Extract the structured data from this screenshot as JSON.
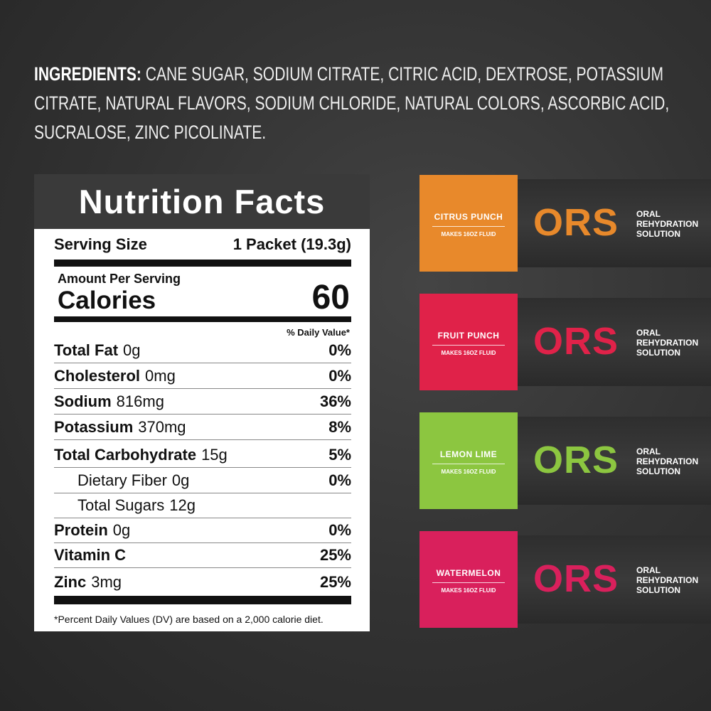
{
  "ingredients": {
    "label": "INGREDIENTS:",
    "text": "CANE SUGAR, SODIUM CITRATE, CITRIC ACID, DEXTROSE, POTASSIUM CITRATE, NATURAL FLAVORS, SODIUM CHLORIDE, NATURAL COLORS, ASCORBIC ACID, SUCRALOSE, ZINC PICOLINATE."
  },
  "nutrition": {
    "title": "Nutrition Facts",
    "serving_size_label": "Serving Size",
    "serving_size_value": "1 Packet (19.3g)",
    "amount_per_serving": "Amount Per Serving",
    "calories_label": "Calories",
    "calories_value": "60",
    "daily_value_header": "% Daily Value*",
    "rows": [
      {
        "name": "Total Fat",
        "amount": "0g",
        "dv": "0%"
      },
      {
        "name": "Cholesterol",
        "amount": "0mg",
        "dv": "0%"
      },
      {
        "name": "Sodium",
        "amount": "816mg",
        "dv": "36%"
      },
      {
        "name": "Potassium",
        "amount": "370mg",
        "dv": "8%"
      },
      {
        "name": "Total Carbohydrate",
        "amount": "15g",
        "dv": "5%"
      },
      {
        "name": "Dietary Fiber",
        "amount": "0g",
        "dv": "0%"
      },
      {
        "name": "Total Sugars",
        "amount": "12g"
      },
      {
        "name": "Protein",
        "amount": "0g",
        "dv": "0%"
      },
      {
        "name": "Vitamin C",
        "dv": "25%"
      },
      {
        "name": "Zinc",
        "amount": "3mg",
        "dv": "25%"
      }
    ],
    "footnote": "*Percent Daily Values (DV) are based on a 2,000 calorie diet."
  },
  "packets": [
    {
      "flavor": "CITRUS PUNCH",
      "makes": "MAKES 16OZ FLUID",
      "brand": "ORS",
      "line1": "ORAL",
      "line2": "REHYDRATION",
      "line3": "SOLUTION",
      "color": "#e8892b"
    },
    {
      "flavor": "FRUIT PUNCH",
      "makes": "MAKES 16OZ FLUID",
      "brand": "ORS",
      "line1": "ORAL",
      "line2": "REHYDRATION",
      "line3": "SOLUTION",
      "color": "#e02249"
    },
    {
      "flavor": "LEMON LIME",
      "makes": "MAKES 16OZ FLUID",
      "brand": "ORS",
      "line1": "ORAL",
      "line2": "REHYDRATION",
      "line3": "SOLUTION",
      "color": "#8cc640"
    },
    {
      "flavor": "WATERMELON",
      "makes": "MAKES 16OZ FLUID",
      "brand": "ORS",
      "line1": "ORAL",
      "line2": "REHYDRATION",
      "line3": "SOLUTION",
      "color": "#d9205c"
    }
  ]
}
